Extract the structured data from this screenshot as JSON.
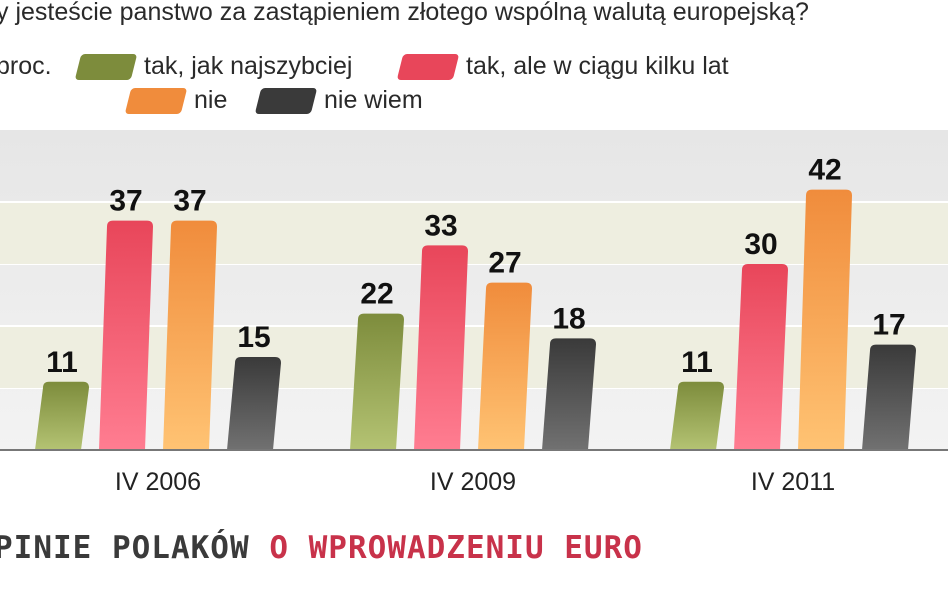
{
  "header": {
    "question": "y jesteście panstwo za zastąpieniem złotego wspólną walutą europejską?",
    "unit": "proc."
  },
  "footer": {
    "part1": "PINIE POLAKÓW",
    "part2": "O WPROWADZENIU EURO",
    "part1_color": "#3a3a3a",
    "part2_color": "#c8324a"
  },
  "chart_data": {
    "type": "bar",
    "categories": [
      "IV 2006",
      "IV 2009",
      "IV 2011"
    ],
    "series": [
      {
        "name": "tak, jak najszybciej",
        "values": [
          11,
          22,
          11
        ],
        "color": "#7d8c3c"
      },
      {
        "name": "tak, ale w ciągu kilku lat",
        "values": [
          37,
          33,
          30
        ],
        "color": "#e8465a"
      },
      {
        "name": "nie",
        "values": [
          37,
          27,
          42
        ],
        "color": "#f08c3c"
      },
      {
        "name": "nie wiem",
        "values": [
          15,
          18,
          17
        ],
        "color": "#3a3a3a"
      }
    ],
    "ylim": [
      0,
      50
    ],
    "grid": true,
    "legend": "top"
  }
}
